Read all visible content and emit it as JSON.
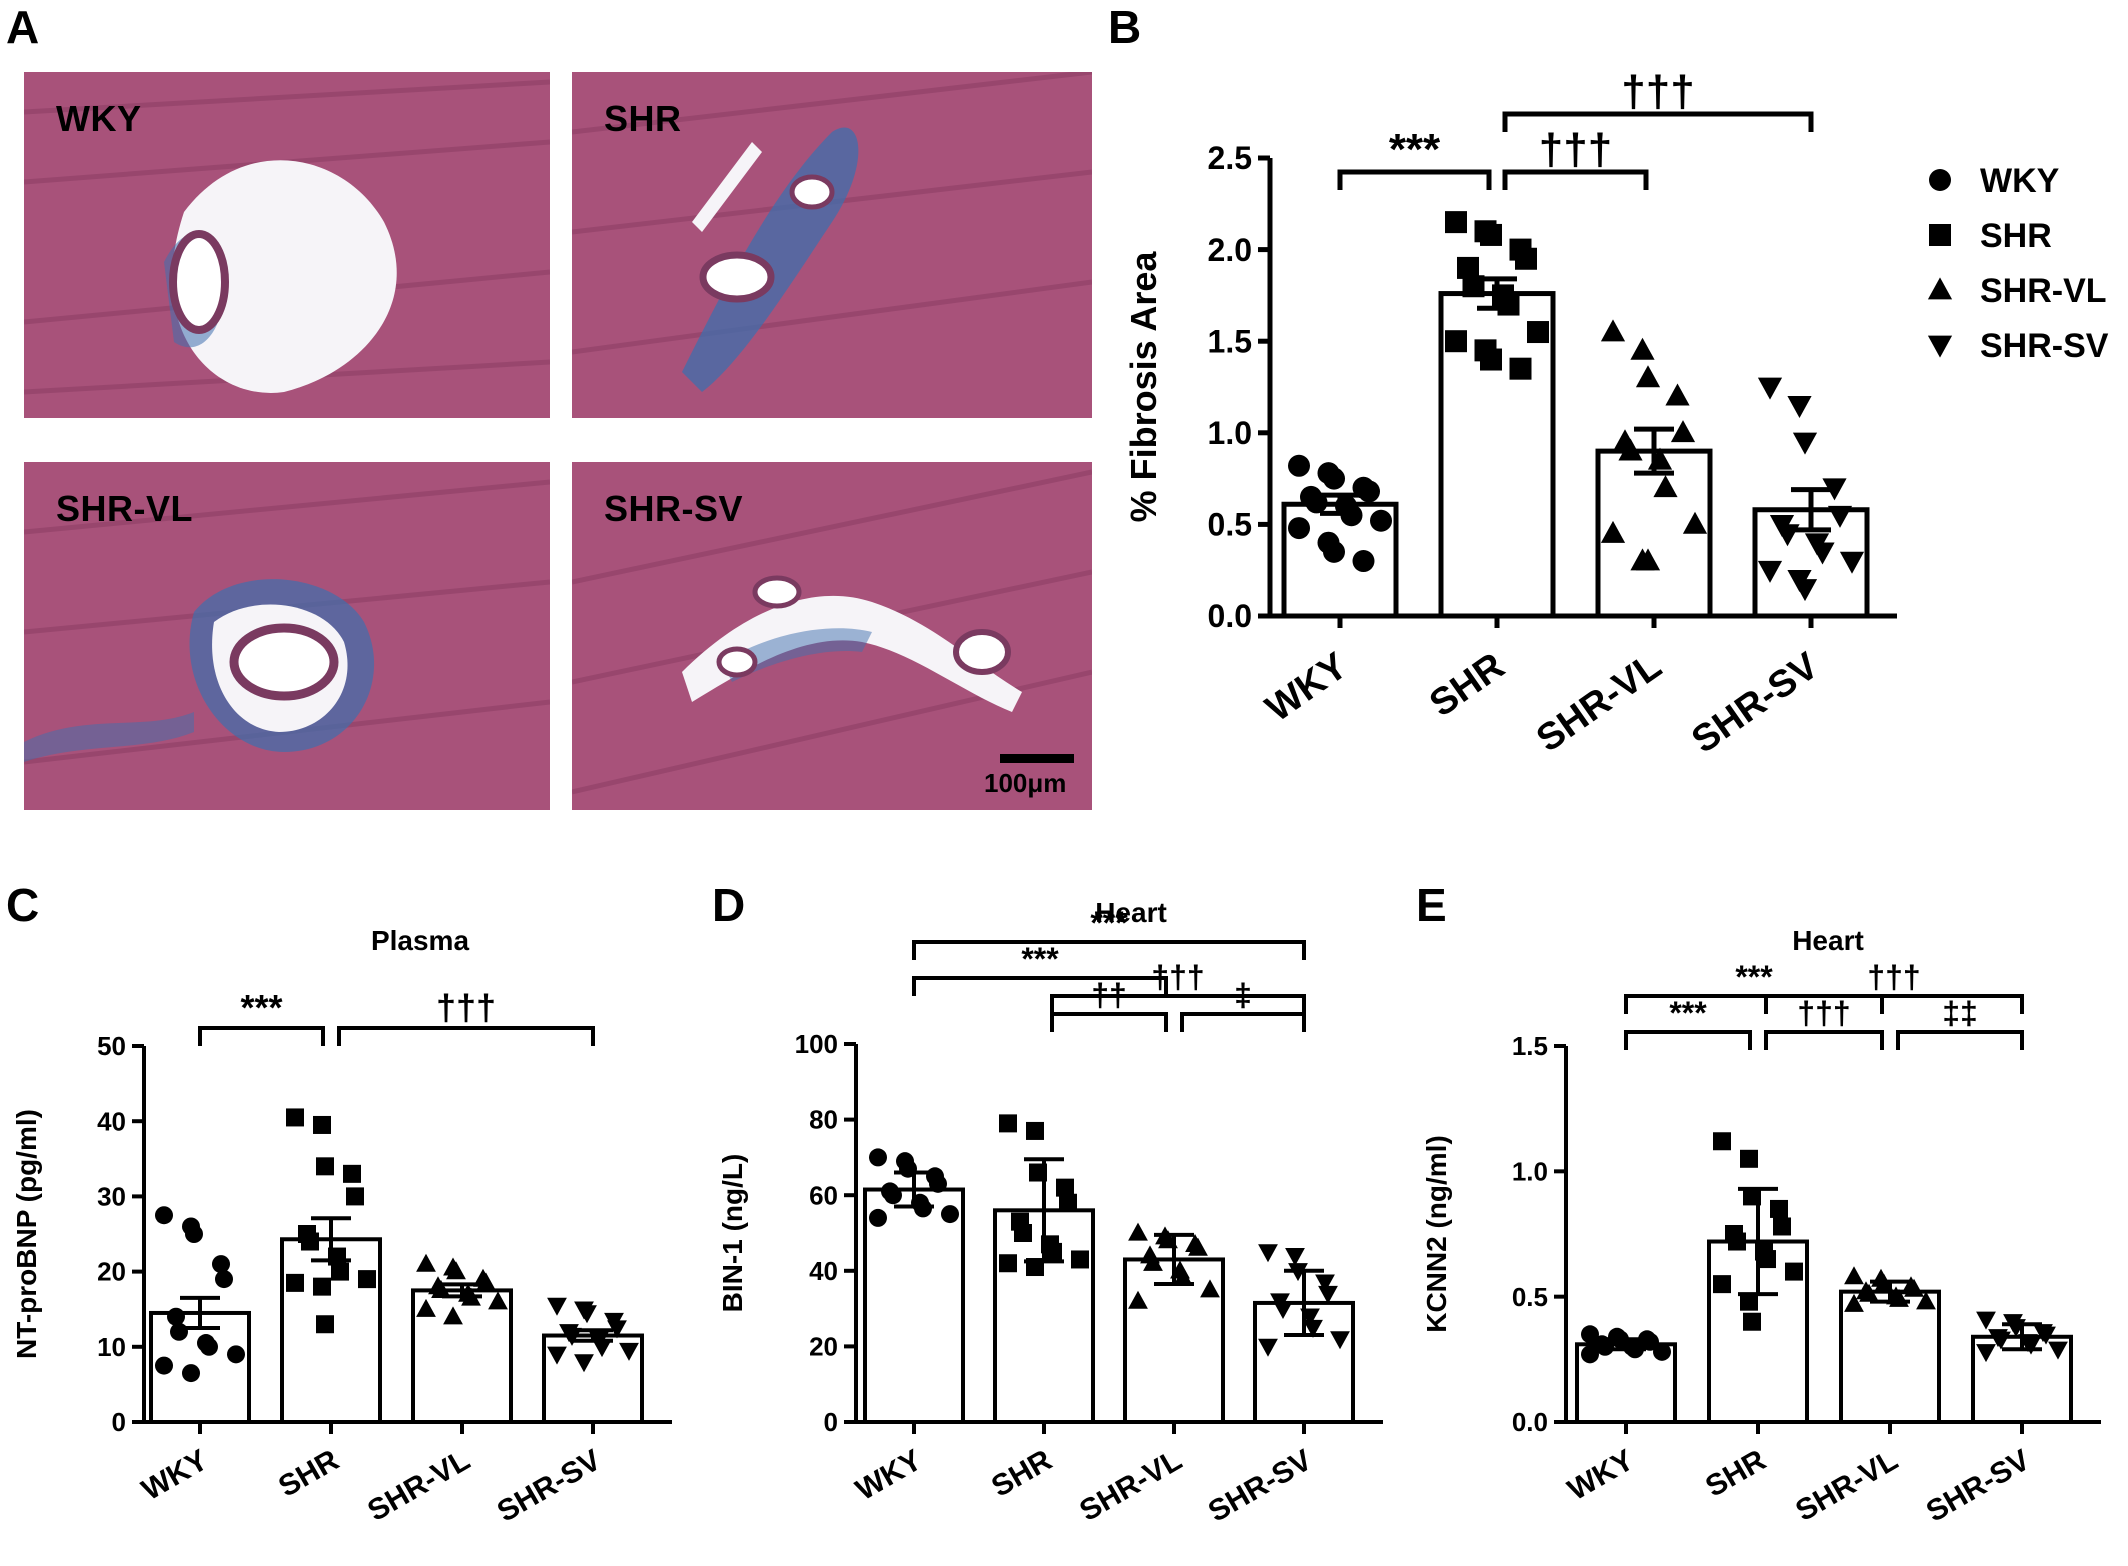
{
  "panel_letters": {
    "a": "A",
    "b": "B",
    "c": "C",
    "d": "D",
    "e": "E"
  },
  "micrographs": [
    {
      "label": "WKY",
      "tissue_color": "#a8527a",
      "stain_color": "#3f6fae"
    },
    {
      "label": "SHR",
      "tissue_color": "#a8527a",
      "stain_color": "#3f6fae"
    },
    {
      "label": "SHR-VL",
      "tissue_color": "#a8527a",
      "stain_color": "#3f6fae"
    },
    {
      "label": "SHR-SV",
      "tissue_color": "#a8527a",
      "stain_color": "#3f6fae"
    }
  ],
  "scalebar": {
    "label": "100μm"
  },
  "chart_data": [
    {
      "id": "B",
      "type": "bar",
      "title": "",
      "ylabel": "% Fibrosis Area",
      "ylim": [
        0,
        2.5
      ],
      "yticks": [
        "0.0",
        "0.5",
        "1.0",
        "1.5",
        "2.0",
        "2.5"
      ],
      "categories": [
        "WKY",
        "SHR",
        "SHR-VL",
        "SHR-SV"
      ],
      "markers": [
        "circle",
        "square",
        "triangle",
        "triangle-down"
      ],
      "means": [
        0.61,
        1.76,
        0.9,
        0.58
      ],
      "sem": [
        0.05,
        0.08,
        0.12,
        0.11
      ],
      "points": [
        [
          0.82,
          0.78,
          0.75,
          0.7,
          0.68,
          0.65,
          0.62,
          0.6,
          0.55,
          0.52,
          0.48,
          0.4,
          0.35,
          0.3
        ],
        [
          2.15,
          2.1,
          2.08,
          2.0,
          1.95,
          1.9,
          1.8,
          1.75,
          1.7,
          1.55,
          1.5,
          1.45,
          1.4,
          1.35
        ],
        [
          1.55,
          1.45,
          1.3,
          1.2,
          1.0,
          0.95,
          0.9,
          0.85,
          0.7,
          0.5,
          0.45,
          0.3,
          0.3
        ],
        [
          1.25,
          1.15,
          0.95,
          0.7,
          0.55,
          0.5,
          0.45,
          0.4,
          0.35,
          0.3,
          0.25,
          0.2,
          0.15
        ]
      ],
      "legend": [
        "WKY",
        "SHR",
        "SHR-VL",
        "SHR-SV"
      ],
      "comparisons": [
        {
          "from": 0,
          "to": 1,
          "level": 1,
          "label": "***"
        },
        {
          "from": 1,
          "to": 2,
          "level": 1,
          "label": "†††"
        },
        {
          "from": 1,
          "to": 3,
          "level": 2,
          "label": "†††"
        }
      ]
    },
    {
      "id": "C",
      "type": "bar",
      "title": "Plasma",
      "ylabel": "NT-proBNP (pg/ml)",
      "ylim": [
        0,
        50
      ],
      "yticks": [
        "0",
        "10",
        "20",
        "30",
        "40",
        "50"
      ],
      "categories": [
        "WKY",
        "SHR",
        "SHR-VL",
        "SHR-SV"
      ],
      "markers": [
        "circle",
        "square",
        "triangle",
        "triangle-down"
      ],
      "means": [
        14.5,
        24.3,
        17.5,
        11.5
      ],
      "sem": [
        2.0,
        2.8,
        0.8,
        0.7
      ],
      "points": [
        [
          27.5,
          26.0,
          25.0,
          21.0,
          19.0,
          14.0,
          12.0,
          10.5,
          10.0,
          9.0,
          7.5,
          6.5
        ],
        [
          40.5,
          39.5,
          34.0,
          33.0,
          30.0,
          25.0,
          24.0,
          22.0,
          20.0,
          19.0,
          18.5,
          18.0,
          13.0
        ],
        [
          21.0,
          20.5,
          20.0,
          19.0,
          18.5,
          18.0,
          17.5,
          17.0,
          16.5,
          16.0,
          15.0,
          14.0
        ],
        [
          15.5,
          15.0,
          14.5,
          13.5,
          12.5,
          12.0,
          11.5,
          11.0,
          10.0,
          9.5,
          9.0,
          8.0
        ]
      ],
      "comparisons": [
        {
          "from": 0,
          "to": 1,
          "level": 1,
          "label": "***"
        },
        {
          "from": 1,
          "to": 3,
          "level": 1,
          "label": "†††"
        }
      ]
    },
    {
      "id": "D",
      "type": "bar",
      "title": "Heart",
      "ylabel": "BIN-1 (ng/L)",
      "ylim": [
        0,
        100
      ],
      "yticks": [
        "0",
        "20",
        "40",
        "60",
        "80",
        "100"
      ],
      "categories": [
        "WKY",
        "SHR",
        "SHR-VL",
        "SHR-SV"
      ],
      "markers": [
        "circle",
        "square",
        "triangle",
        "triangle-down"
      ],
      "means": [
        61.5,
        56.0,
        43.0,
        31.5
      ],
      "sem": [
        4.5,
        13.5,
        6.5,
        8.5
      ],
      "points": [
        [
          70.0,
          69.0,
          67.0,
          65.0,
          63.0,
          61.0,
          60.0,
          58.0,
          56.5,
          55.0,
          54.0
        ],
        [
          79.0,
          77.0,
          66.0,
          62.0,
          58.0,
          53.0,
          50.0,
          47.0,
          45.0,
          43.0,
          42.0,
          41.0
        ],
        [
          50.0,
          49.0,
          48.0,
          47.0,
          46.0,
          44.0,
          42.0,
          40.0,
          38.0,
          35.0,
          32.0
        ],
        [
          45.0,
          44.0,
          40.0,
          37.0,
          34.0,
          32.0,
          30.0,
          28.0,
          25.0,
          22.0,
          20.0
        ]
      ],
      "comparisons": [
        {
          "from": 0,
          "to": 3,
          "level": 3,
          "label": "***"
        },
        {
          "from": 0,
          "to": 2,
          "level": 2,
          "label": "***"
        },
        {
          "from": 1,
          "to": 3,
          "level": 1.5,
          "label": "†††"
        },
        {
          "from": 1,
          "to": 2,
          "level": 1,
          "label": "††"
        },
        {
          "from": 2,
          "to": 3,
          "level": 1,
          "label": "‡"
        }
      ]
    },
    {
      "id": "E",
      "type": "bar",
      "title": "Heart",
      "ylabel": "KCNN2 (ng/ml)",
      "ylim": [
        0,
        1.5
      ],
      "yticks": [
        "0.0",
        "0.5",
        "1.0",
        "1.5"
      ],
      "categories": [
        "WKY",
        "SHR",
        "SHR-VL",
        "SHR-SV"
      ],
      "markers": [
        "circle",
        "square",
        "triangle",
        "triangle-down"
      ],
      "means": [
        0.31,
        0.72,
        0.52,
        0.34
      ],
      "sem": [
        0.02,
        0.21,
        0.04,
        0.05
      ],
      "points": [
        [
          0.35,
          0.34,
          0.33,
          0.33,
          0.32,
          0.31,
          0.3,
          0.3,
          0.29,
          0.28,
          0.27
        ],
        [
          1.12,
          1.05,
          0.9,
          0.85,
          0.78,
          0.75,
          0.72,
          0.68,
          0.65,
          0.6,
          0.55,
          0.48,
          0.4
        ],
        [
          0.58,
          0.57,
          0.55,
          0.54,
          0.53,
          0.52,
          0.51,
          0.5,
          0.49,
          0.48,
          0.47
        ],
        [
          0.41,
          0.4,
          0.38,
          0.36,
          0.35,
          0.34,
          0.33,
          0.32,
          0.31,
          0.29,
          0.28
        ]
      ],
      "comparisons": [
        {
          "from": 0,
          "to": 2,
          "level": 2,
          "label": "***"
        },
        {
          "from": 0,
          "to": 1,
          "level": 1,
          "label": "***"
        },
        {
          "from": 1,
          "to": 3,
          "level": 2,
          "label": "†††"
        },
        {
          "from": 1,
          "to": 2,
          "level": 1,
          "label": "†††"
        },
        {
          "from": 2,
          "to": 3,
          "level": 1,
          "label": "‡‡"
        }
      ]
    }
  ]
}
